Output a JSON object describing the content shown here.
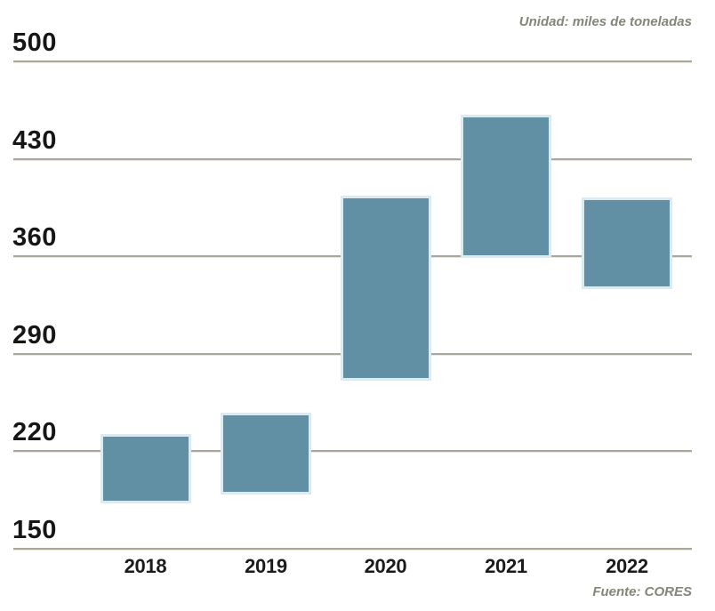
{
  "header": {
    "unit_label": "Unidad: miles de toneladas"
  },
  "footer": {
    "source_label": "Fuente: CORES"
  },
  "chart_data": {
    "type": "bar",
    "subtype": "floating-range-bars",
    "title": "",
    "xlabel": "",
    "ylabel": "",
    "unit": "miles de toneladas",
    "source": "CORES",
    "categories": [
      "2018",
      "2019",
      "2020",
      "2021",
      "2022"
    ],
    "series": [
      {
        "name": "rango-anual",
        "values": [
          {
            "low": 184,
            "high": 230
          },
          {
            "low": 190,
            "high": 245
          },
          {
            "low": 272,
            "high": 401
          },
          {
            "low": 360,
            "high": 459
          },
          {
            "low": 338,
            "high": 400
          }
        ]
      }
    ],
    "y_ticks": [
      500,
      430,
      360,
      290,
      220,
      150
    ],
    "ylim": [
      150,
      500
    ],
    "grid": true,
    "legend": "none",
    "colors": {
      "bar_fill": "#6190a4",
      "bar_halo": "#dcebf2",
      "gridline": "#a9a79d",
      "gridline_highlight": "#e9e7e0",
      "axis_text": "#161616",
      "muted_text": "#85857a"
    }
  }
}
